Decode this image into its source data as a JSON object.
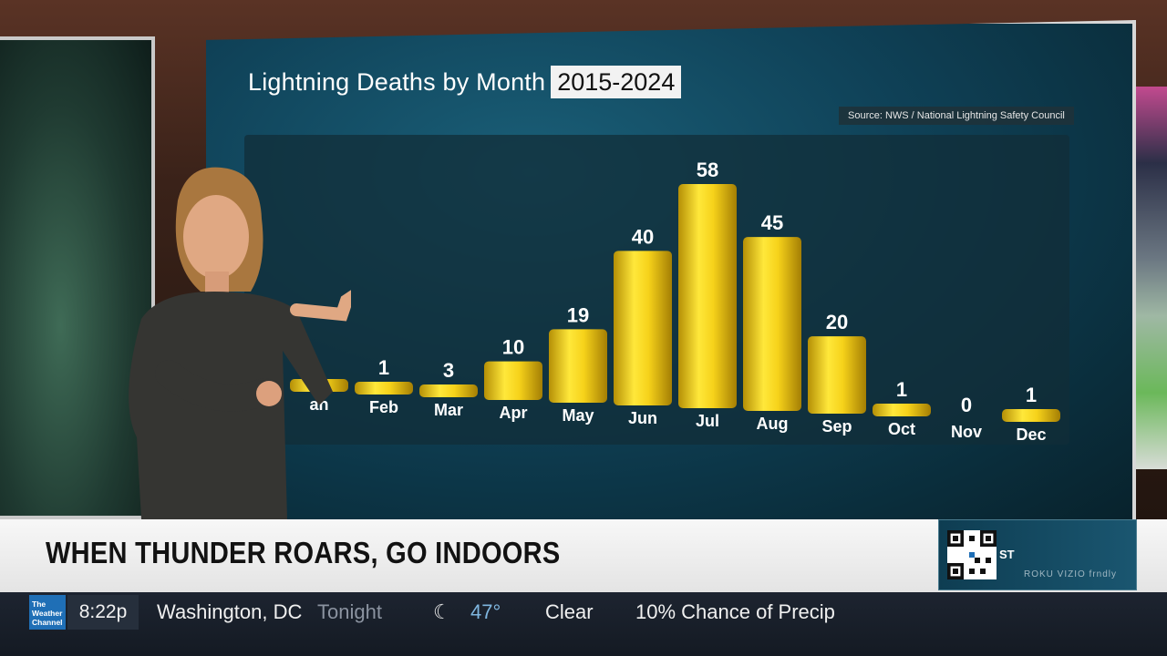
{
  "chart_data": {
    "type": "bar",
    "title": "Lightning Deaths by Month",
    "subtitle": "2015-2024",
    "source": "Source: NWS / National Lightning Safety Council",
    "categories": [
      "Jan",
      "Feb",
      "Mar",
      "Apr",
      "May",
      "Jun",
      "Jul",
      "Aug",
      "Sep",
      "Oct",
      "Nov",
      "Dec"
    ],
    "visible_labels": [
      "an",
      "Feb",
      "Mar",
      "Apr",
      "May",
      "Jun",
      "Jul",
      "Aug",
      "Sep",
      "Oct",
      "Nov",
      "Dec"
    ],
    "values": [
      1,
      1,
      3,
      10,
      19,
      40,
      58,
      45,
      20,
      1,
      0,
      1
    ],
    "visible_value_labels": [
      "",
      "1",
      "3",
      "10",
      "19",
      "40",
      "58",
      "45",
      "20",
      "1",
      "0",
      "1"
    ],
    "ylim": [
      0,
      60
    ],
    "grid": false,
    "bar_color": "#f1d21b"
  },
  "lower_third": {
    "headline": "WHEN THUNDER ROARS, GO INDOORS",
    "qr_label": "ST",
    "partner_logos": "ROKU VIZIO frndly"
  },
  "ticker": {
    "logo": "The Weather Channel",
    "time": "8:22p",
    "location": "Washington, DC",
    "period": "Tonight",
    "sky_icon": "moon-icon",
    "temperature": "47°",
    "condition": "Clear",
    "precip": "10% Chance of Precip"
  },
  "colors": {
    "accent": "#1f6fb6",
    "temp": "#7fb6df"
  }
}
